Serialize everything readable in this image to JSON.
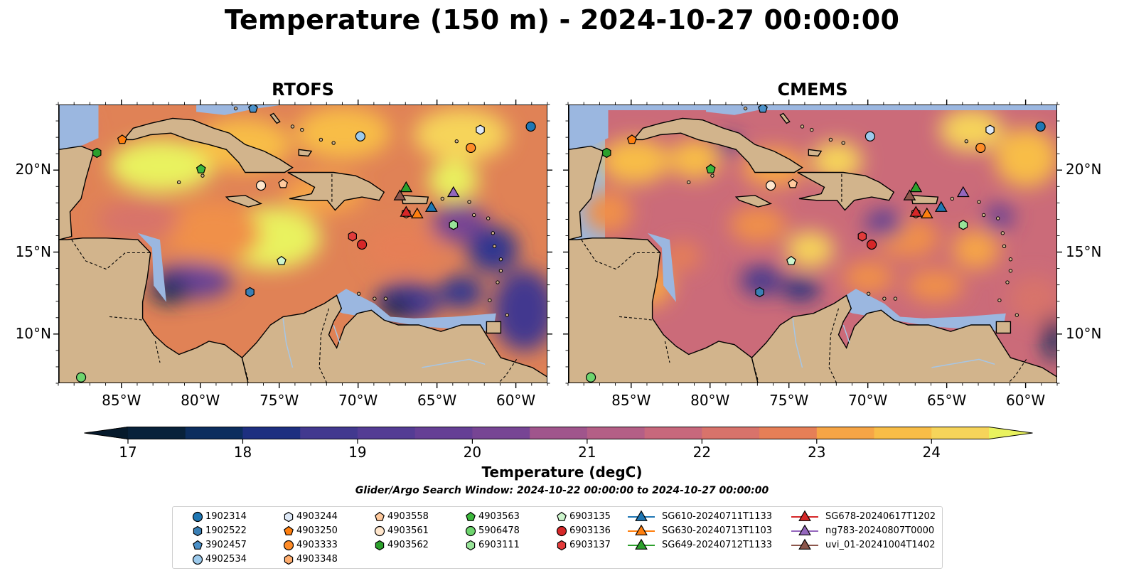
{
  "title": "Temperature (150 m) - 2024-10-27 00:00:00",
  "panels": [
    {
      "title": "RTOFS"
    },
    {
      "title": "CMEMS"
    }
  ],
  "axes": {
    "lon_ticks": [
      "85°W",
      "80°W",
      "75°W",
      "70°W",
      "65°W",
      "60°W"
    ],
    "lat_ticks": [
      "20°N",
      "15°N",
      "10°N"
    ],
    "lon_range": [
      -89,
      -58
    ],
    "lat_range": [
      7,
      24
    ]
  },
  "colorbar": {
    "label": "Temperature (degC)",
    "ticks": [
      "17",
      "18",
      "19",
      "20",
      "21",
      "22",
      "23",
      "24"
    ],
    "vmin": 17,
    "vmax": 24.5,
    "extend": "both",
    "colors": [
      "#08213a",
      "#0c2d5e",
      "#1d2f80",
      "#2e3690",
      "#42398f",
      "#543c94",
      "#653f95",
      "#774594",
      "#8b4c91",
      "#a0558c",
      "#b45f86",
      "#c7687c",
      "#d8736b",
      "#e67f57",
      "#f0904a",
      "#f6a546",
      "#f8bd47",
      "#f6d45a",
      "#e9f25e"
    ],
    "over_color": "#e9f25e",
    "under_color": "#061a2c"
  },
  "search_window": "Glider/Argo Search Window: 2024-10-22 00:00:00 to 2024-10-27 00:00:00",
  "legend": [
    {
      "label": "1902314",
      "marker": "circle",
      "color": "#1f77b4",
      "lon": -59.1,
      "lat": 22.7
    },
    {
      "label": "1902522",
      "marker": "hexagon",
      "color": "#3a7fb5",
      "lon": -76.9,
      "lat": 12.6
    },
    {
      "label": "3902457",
      "marker": "pentagon",
      "color": "#4a90c8",
      "lon": -76.7,
      "lat": 23.8
    },
    {
      "label": "4902534",
      "marker": "circle",
      "color": "#9ccaec",
      "lon": -69.9,
      "lat": 22.1
    },
    {
      "label": "4903244",
      "marker": "hexagon",
      "color": "#dde8f6",
      "lon": -62.3,
      "lat": 22.5
    },
    {
      "label": "4903250",
      "marker": "pentagon",
      "color": "#ff7f0e",
      "lon": -85.0,
      "lat": 21.9
    },
    {
      "label": "4903333",
      "marker": "circle",
      "color": "#ff8c28",
      "lon": -62.9,
      "lat": 21.4
    },
    {
      "label": "4903348",
      "marker": "hexagon",
      "color": "#ffad6e",
      "lon": -67.0,
      "lat": 17.4
    },
    {
      "label": "4903558",
      "marker": "pentagon",
      "color": "#ffc99c",
      "lon": -74.8,
      "lat": 19.2
    },
    {
      "label": "4903561",
      "marker": "circle",
      "color": "#ffe6cc",
      "lon": -76.2,
      "lat": 19.1
    },
    {
      "label": "4903562",
      "marker": "hexagon",
      "color": "#2ca02c",
      "lon": -86.6,
      "lat": 21.1
    },
    {
      "label": "4903563",
      "marker": "pentagon",
      "color": "#3cb83c",
      "lon": -80.0,
      "lat": 20.1
    },
    {
      "label": "5906478",
      "marker": "circle",
      "color": "#6ed46e",
      "lon": -87.6,
      "lat": 7.4
    },
    {
      "label": "6903111",
      "marker": "hexagon",
      "color": "#98e398",
      "lon": -64.0,
      "lat": 16.7
    },
    {
      "label": "6903135",
      "marker": "pentagon",
      "color": "#ccf5cc",
      "lon": -74.9,
      "lat": 14.5
    },
    {
      "label": "6903136",
      "marker": "circle",
      "color": "#d62728",
      "lon": -69.8,
      "lat": 15.5
    },
    {
      "label": "6903137",
      "marker": "hexagon",
      "color": "#e23b3b",
      "lon": -70.4,
      "lat": 16.0
    },
    {
      "label": "SG610-20240711T1133",
      "marker": "triangle",
      "color": "#1f77b4",
      "lon": -65.4,
      "lat": 17.8
    },
    {
      "label": "SG630-20240713T1103",
      "marker": "triangle",
      "color": "#ff7f0e",
      "lon": -66.3,
      "lat": 17.4
    },
    {
      "label": "SG649-20240712T1133",
      "marker": "triangle",
      "color": "#2ca02c",
      "lon": -67.0,
      "lat": 19.0
    },
    {
      "label": "SG678-20240617T1202",
      "marker": "triangle",
      "color": "#d62728",
      "lon": -67.0,
      "lat": 17.5
    },
    {
      "label": "ng783-20240807T0000",
      "marker": "triangle",
      "color": "#9467bd",
      "lon": -64.0,
      "lat": 18.7
    },
    {
      "label": "uvi_01-20241004T1402",
      "marker": "triangle",
      "color": "#8c564b",
      "lon": -67.4,
      "lat": 18.5
    }
  ]
}
